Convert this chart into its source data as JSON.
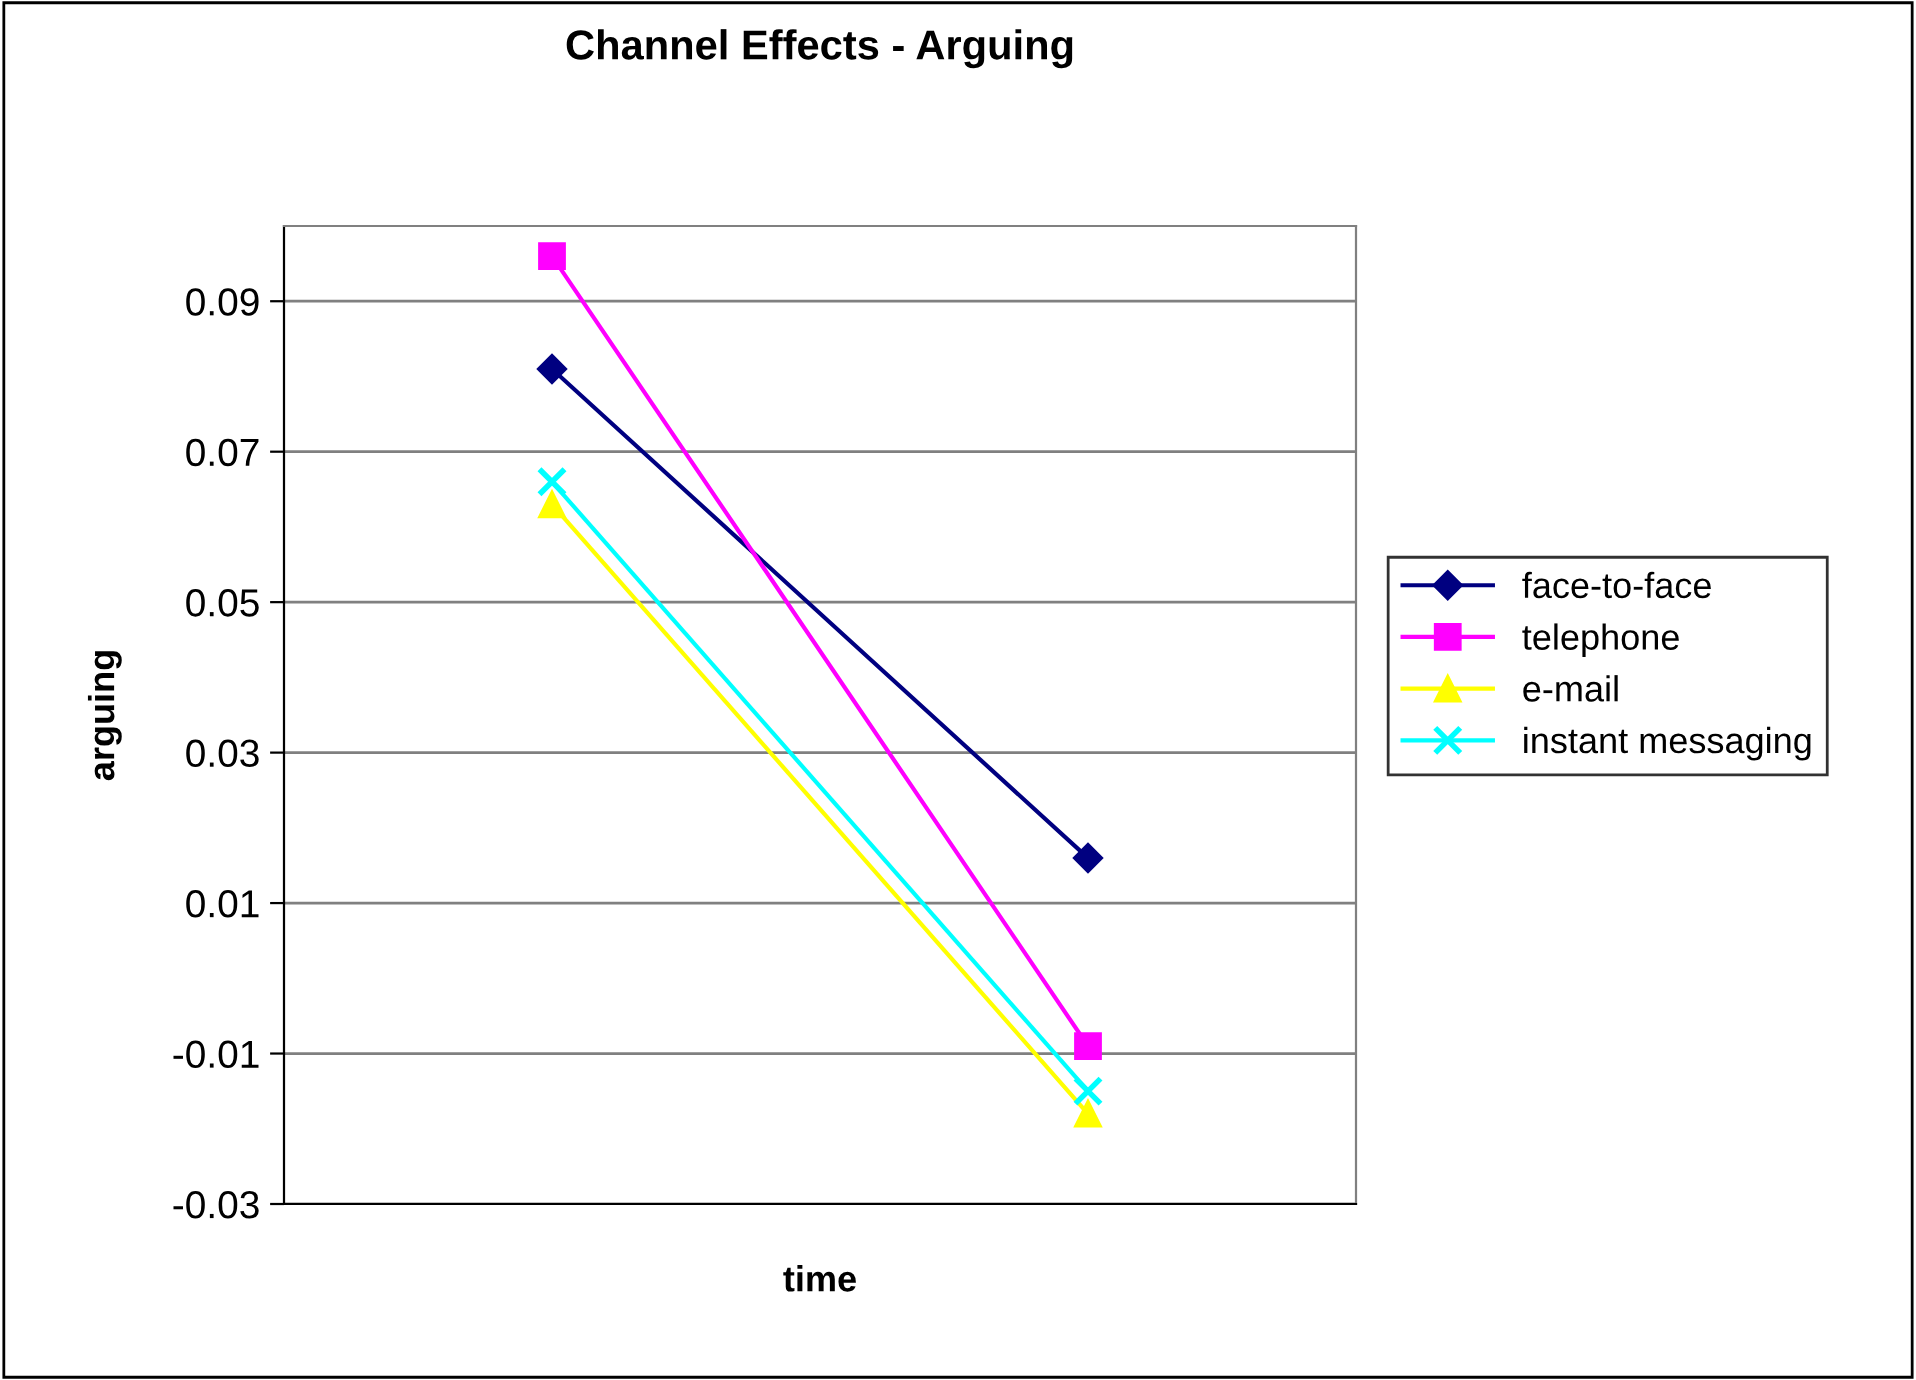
{
  "chart_data": {
    "type": "line",
    "title": "Channel Effects - Arguing",
    "xlabel": "time",
    "ylabel": "arguing",
    "categories": [
      null,
      null
    ],
    "series": [
      {
        "name": "face-to-face",
        "color": "#000080",
        "marker": "diamond",
        "values": [
          0.081,
          0.016
        ]
      },
      {
        "name": "telephone",
        "color": "#ff00ff",
        "marker": "square",
        "values": [
          0.096,
          -0.009
        ]
      },
      {
        "name": "e-mail",
        "color": "#ffff00",
        "marker": "triangle",
        "values": [
          0.063,
          -0.018
        ]
      },
      {
        "name": "instant messaging",
        "color": "#00ffff",
        "marker": "cross",
        "values": [
          0.066,
          -0.015
        ]
      }
    ],
    "ylim": [
      -0.03,
      0.1
    ],
    "yticks": [
      -0.03,
      -0.01,
      0.01,
      0.03,
      0.05,
      0.07,
      0.09
    ],
    "grid": "y",
    "legend": "right",
    "tick_labels": "y"
  }
}
